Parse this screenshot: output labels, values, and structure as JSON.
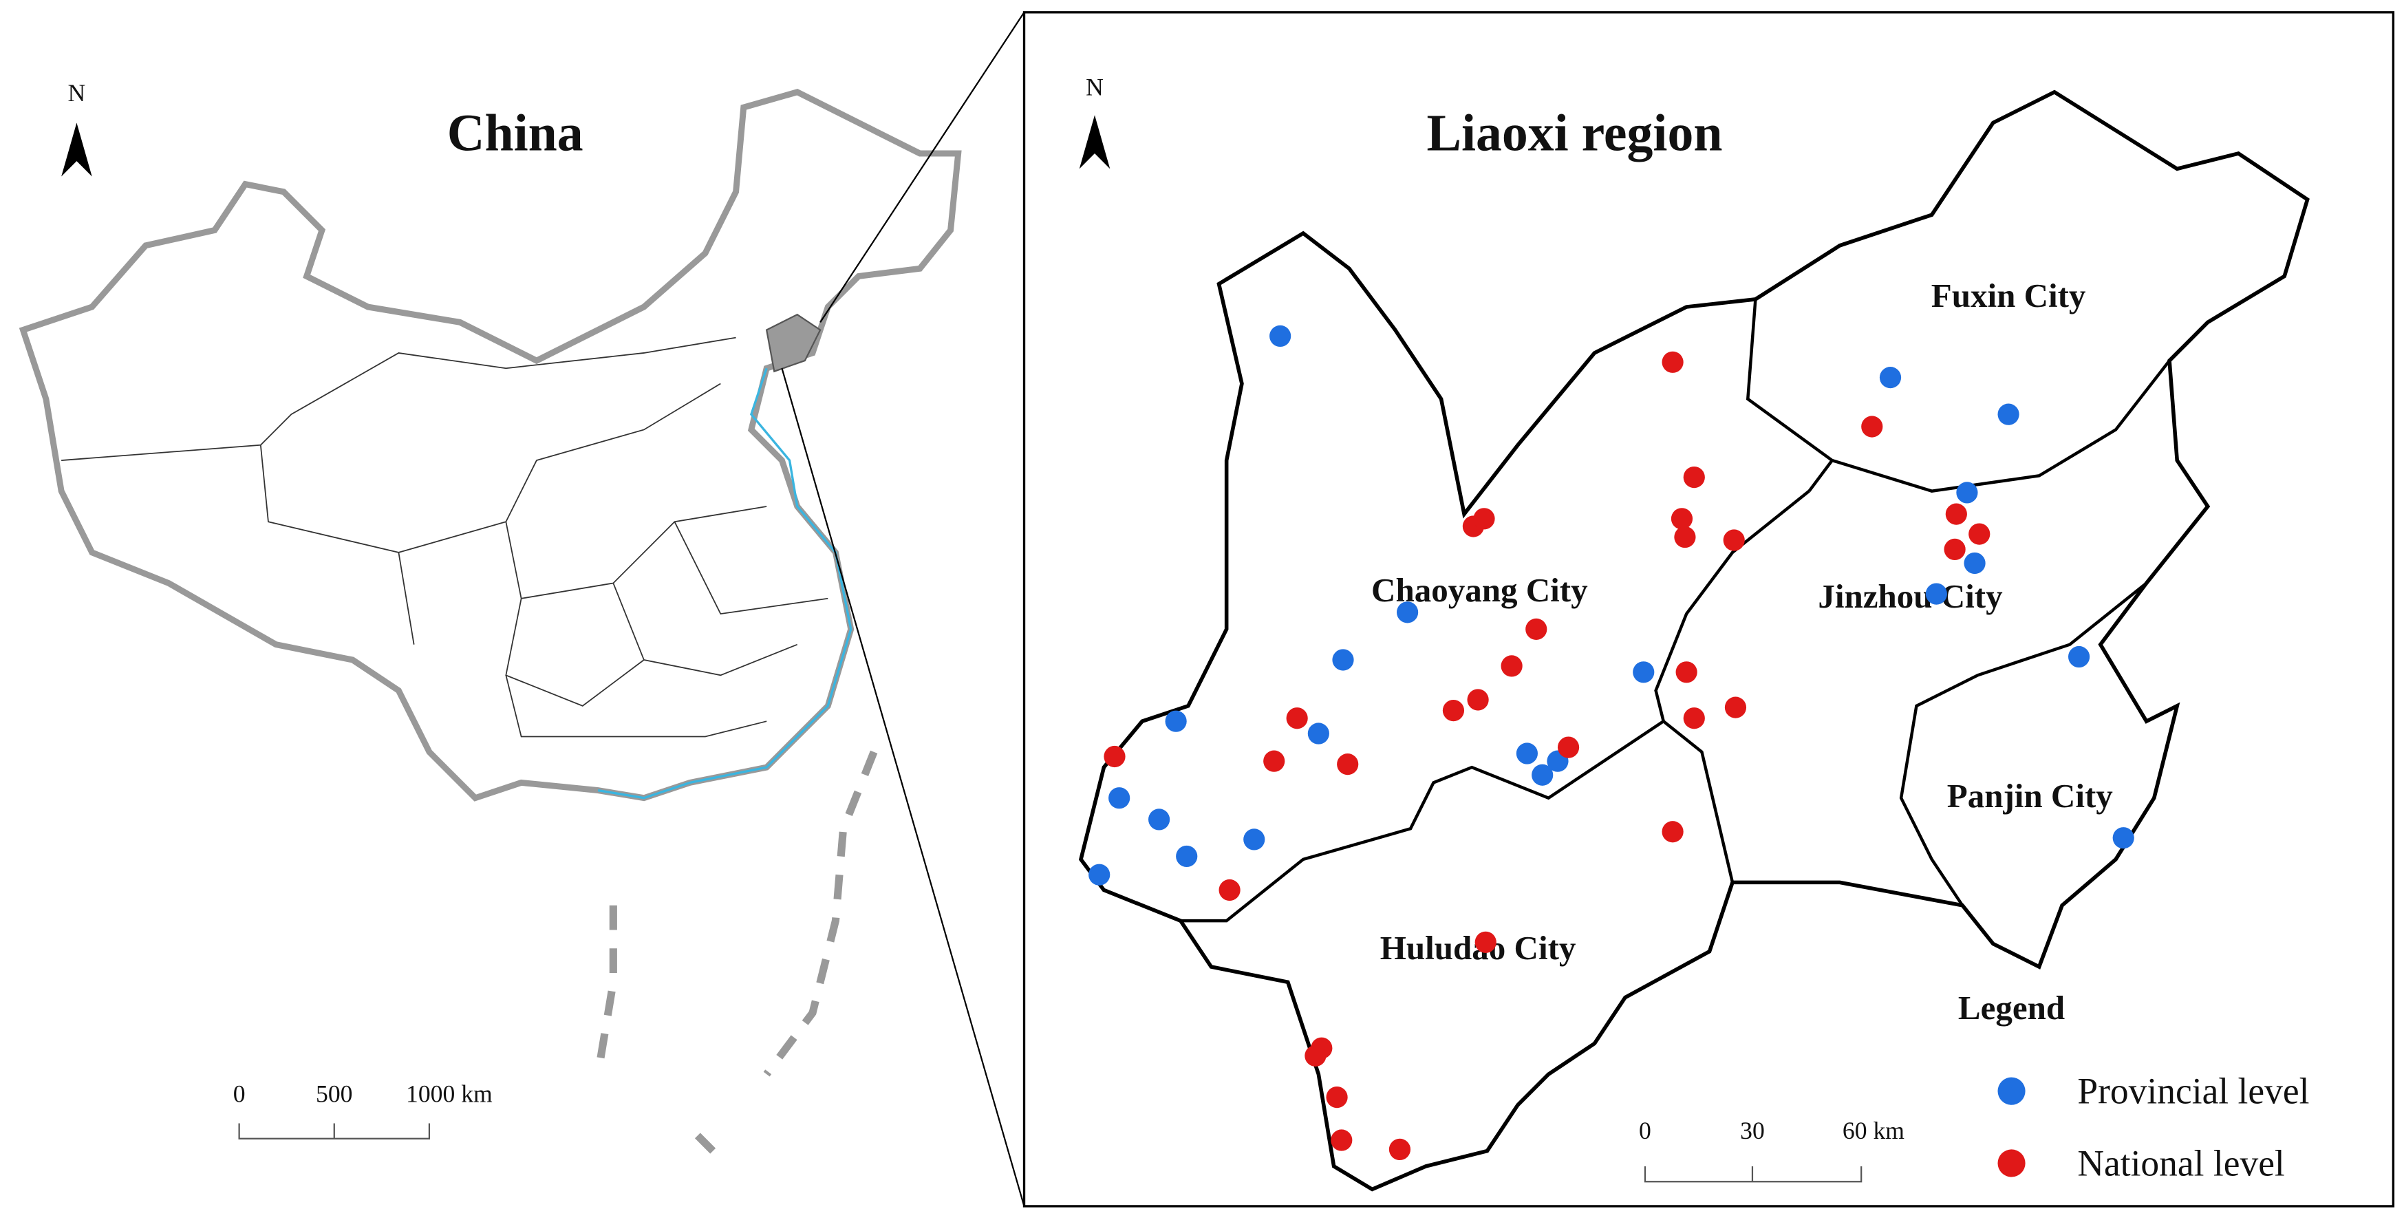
{
  "left_map": {
    "north": "N",
    "title": "China",
    "scale_bar": [
      "0",
      "500",
      "1000 km"
    ]
  },
  "right_map": {
    "north": "N",
    "title": "Liaoxi region",
    "cities": [
      "Fuxin City",
      "Chaoyang City",
      "Jinzhou City",
      "Panjin City",
      "Huludao City"
    ],
    "scale_bar": [
      "0",
      "30",
      "60 km"
    ],
    "legend": {
      "title": "Legend",
      "items": [
        {
          "label": "Provincial level",
          "color": "#1f6fe0"
        },
        {
          "label": "National level",
          "color": "#e01818"
        }
      ]
    }
  }
}
